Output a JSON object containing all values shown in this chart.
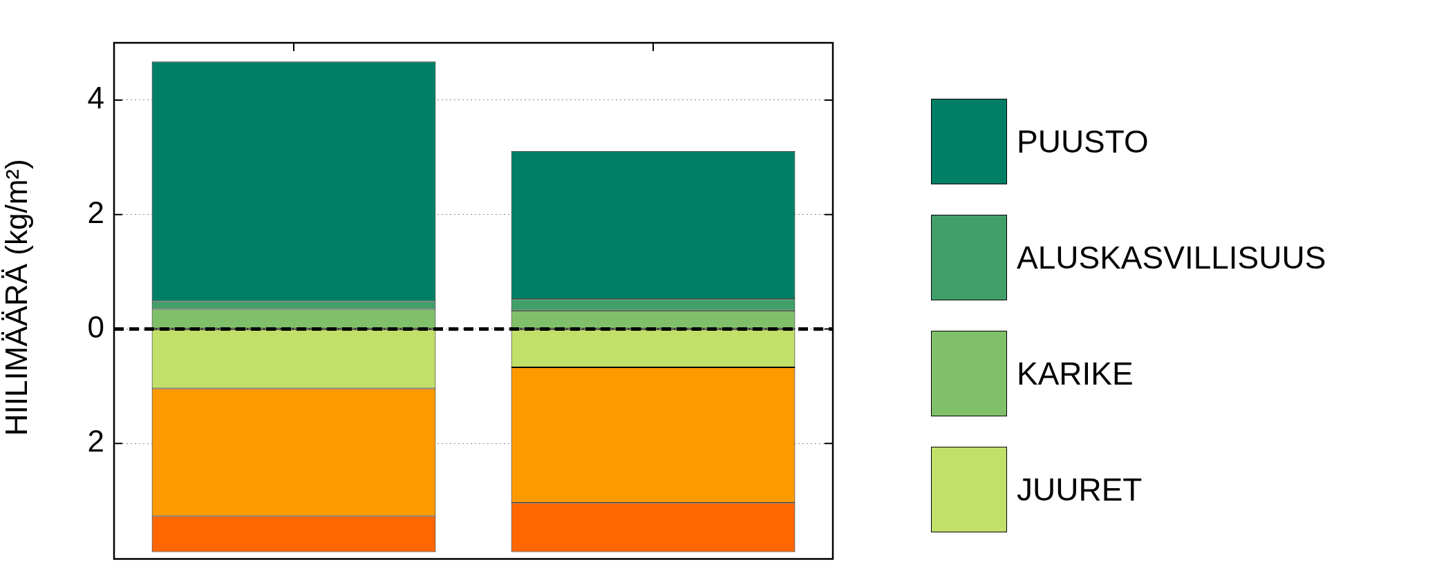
{
  "chart_data": {
    "type": "bar",
    "stacked": true,
    "ylabel": "HIILIMÄÄRÄ (kg/m²)",
    "categories": [
      null,
      null
    ],
    "series": [
      {
        "name": "KARIKE",
        "color": "#80c06a",
        "values": [
          0.35,
          0.32
        ]
      },
      {
        "name": "ALUSKASVILLISUUS",
        "color": "#41a06a",
        "values": [
          0.13,
          0.2
        ]
      },
      {
        "name": "PUUSTO",
        "color": "#007f66",
        "values": [
          4.19,
          2.59
        ]
      },
      {
        "name": "JUURET",
        "color": "#c1e06a",
        "values": [
          -1.04,
          -0.67
        ]
      },
      {
        "color": "#fd9a00",
        "values": [
          -2.23,
          -2.37
        ]
      },
      {
        "color": "#ff6600",
        "values": [
          -0.63,
          -0.86
        ]
      }
    ],
    "ylim": [
      -3.9,
      5
    ],
    "yticks": [
      {
        "value": -2,
        "label": "2"
      },
      0,
      2,
      4
    ],
    "grid": "y",
    "legend": "right",
    "tick_labels": "y",
    "ref_lines": [
      {
        "axis": "y",
        "value": 0,
        "color": "#000000",
        "line_style": "dashed"
      }
    ]
  }
}
